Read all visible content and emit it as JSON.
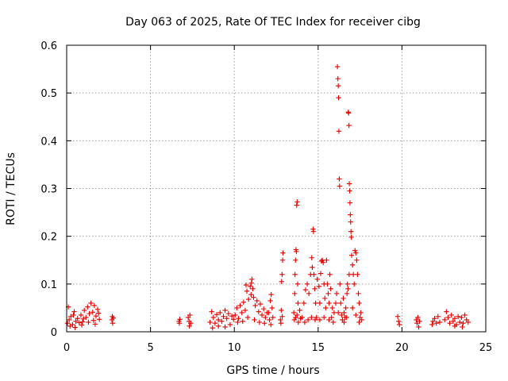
{
  "chart_data": {
    "type": "scatter",
    "title": "Day 063 of 2025, Rate Of TEC Index for receiver cibg",
    "xlabel": "GPS time / hours",
    "ylabel": "ROTI / TECUs",
    "xlim": [
      0,
      25
    ],
    "ylim": [
      0,
      0.6
    ],
    "x_ticks": [
      "0",
      "5",
      "10",
      "15",
      "20",
      "25"
    ],
    "y_ticks": [
      "0",
      "0.1",
      "0.2",
      "0.3",
      "0.4",
      "0.5",
      "0.6"
    ],
    "grid": true,
    "marker": "+",
    "colors": {
      "points": "#e00000"
    },
    "series": [
      {
        "points": [
          [
            0.05,
            0.018
          ],
          [
            0.15,
            0.025
          ],
          [
            0.25,
            0.032
          ],
          [
            0.35,
            0.015
          ],
          [
            0.45,
            0.042
          ],
          [
            0.55,
            0.022
          ],
          [
            0.65,
            0.028
          ],
          [
            0.75,
            0.019
          ],
          [
            0.85,
            0.035
          ],
          [
            0.95,
            0.021
          ],
          [
            1.05,
            0.045
          ],
          [
            1.15,
            0.03
          ],
          [
            1.25,
            0.052
          ],
          [
            1.35,
            0.038
          ],
          [
            1.45,
            0.06
          ],
          [
            1.55,
            0.041
          ],
          [
            1.65,
            0.055
          ],
          [
            1.75,
            0.033
          ],
          [
            1.85,
            0.047
          ],
          [
            1.95,
            0.026
          ],
          [
            0.2,
            0.012
          ],
          [
            0.5,
            0.009
          ],
          [
            0.9,
            0.014
          ],
          [
            1.3,
            0.02
          ],
          [
            1.7,
            0.016
          ],
          [
            0.1,
            0.052
          ],
          [
            0.4,
            0.035
          ],
          [
            1.0,
            0.027
          ],
          [
            1.6,
            0.024
          ],
          [
            1.9,
            0.039
          ],
          [
            2.7,
            0.025
          ],
          [
            2.72,
            0.032
          ],
          [
            2.74,
            0.018
          ],
          [
            2.78,
            0.029
          ],
          [
            6.7,
            0.022
          ],
          [
            6.72,
            0.018
          ],
          [
            6.75,
            0.026
          ],
          [
            7.25,
            0.03
          ],
          [
            7.3,
            0.022
          ],
          [
            7.35,
            0.035
          ],
          [
            7.4,
            0.018
          ],
          [
            7.32,
            0.012
          ],
          [
            8.55,
            0.02
          ],
          [
            8.65,
            0.042
          ],
          [
            8.75,
            0.03
          ],
          [
            8.85,
            0.018
          ],
          [
            8.95,
            0.036
          ],
          [
            9.05,
            0.025
          ],
          [
            9.15,
            0.04
          ],
          [
            9.25,
            0.022
          ],
          [
            9.35,
            0.032
          ],
          [
            9.45,
            0.045
          ],
          [
            9.55,
            0.028
          ],
          [
            9.65,
            0.038
          ],
          [
            9.75,
            0.015
          ],
          [
            9.85,
            0.033
          ],
          [
            9.95,
            0.026
          ],
          [
            9.05,
            0.012
          ],
          [
            9.45,
            0.01
          ],
          [
            8.7,
            0.008
          ],
          [
            10.05,
            0.035
          ],
          [
            10.15,
            0.05
          ],
          [
            10.25,
            0.028
          ],
          [
            10.35,
            0.055
          ],
          [
            10.45,
            0.04
          ],
          [
            10.55,
            0.062
          ],
          [
            10.65,
            0.045
          ],
          [
            10.75,
            0.085
          ],
          [
            10.85,
            0.068
          ],
          [
            10.95,
            0.095
          ],
          [
            11.0,
            0.078
          ],
          [
            11.05,
            0.11
          ],
          [
            11.1,
            0.09
          ],
          [
            11.15,
            0.072
          ],
          [
            11.25,
            0.055
          ],
          [
            11.35,
            0.065
          ],
          [
            11.45,
            0.042
          ],
          [
            11.55,
            0.058
          ],
          [
            11.65,
            0.035
          ],
          [
            11.75,
            0.048
          ],
          [
            11.85,
            0.03
          ],
          [
            11.95,
            0.04
          ],
          [
            10.2,
            0.02
          ],
          [
            10.5,
            0.022
          ],
          [
            10.8,
            0.03
          ],
          [
            11.2,
            0.025
          ],
          [
            11.5,
            0.02
          ],
          [
            11.8,
            0.018
          ],
          [
            10.7,
            0.098
          ],
          [
            11.02,
            0.102
          ],
          [
            12.05,
            0.04
          ],
          [
            12.15,
            0.065
          ],
          [
            12.2,
            0.078
          ],
          [
            12.25,
            0.05
          ],
          [
            12.1,
            0.025
          ],
          [
            12.3,
            0.03
          ],
          [
            12.18,
            0.015
          ],
          [
            12.75,
            0.025
          ],
          [
            12.8,
            0.045
          ],
          [
            12.82,
            0.105
          ],
          [
            12.85,
            0.12
          ],
          [
            12.88,
            0.15
          ],
          [
            12.9,
            0.165
          ],
          [
            12.78,
            0.018
          ],
          [
            12.86,
            0.032
          ],
          [
            13.55,
            0.04
          ],
          [
            13.6,
            0.08
          ],
          [
            13.62,
            0.12
          ],
          [
            13.65,
            0.15
          ],
          [
            13.68,
            0.172
          ],
          [
            13.7,
            0.168
          ],
          [
            13.72,
            0.265
          ],
          [
            13.75,
            0.272
          ],
          [
            13.78,
            0.1
          ],
          [
            13.8,
            0.06
          ],
          [
            13.58,
            0.025
          ],
          [
            13.66,
            0.03
          ],
          [
            13.74,
            0.035
          ],
          [
            13.82,
            0.02
          ],
          [
            13.9,
            0.045
          ],
          [
            13.95,
            0.028
          ],
          [
            14.05,
            0.03
          ],
          [
            14.15,
            0.06
          ],
          [
            14.25,
            0.088
          ],
          [
            14.35,
            0.1
          ],
          [
            14.45,
            0.08
          ],
          [
            14.55,
            0.12
          ],
          [
            14.62,
            0.155
          ],
          [
            14.65,
            0.135
          ],
          [
            14.7,
            0.215
          ],
          [
            14.72,
            0.21
          ],
          [
            14.75,
            0.12
          ],
          [
            14.8,
            0.09
          ],
          [
            14.85,
            0.06
          ],
          [
            14.9,
            0.03
          ],
          [
            14.95,
            0.11
          ],
          [
            14.2,
            0.02
          ],
          [
            14.4,
            0.025
          ],
          [
            14.6,
            0.03
          ],
          [
            14.82,
            0.025
          ],
          [
            15.05,
            0.095
          ],
          [
            15.1,
            0.06
          ],
          [
            15.15,
            0.122
          ],
          [
            15.2,
            0.148
          ],
          [
            15.25,
            0.15
          ],
          [
            15.3,
            0.145
          ],
          [
            15.35,
            0.1
          ],
          [
            15.4,
            0.07
          ],
          [
            15.45,
            0.05
          ],
          [
            15.5,
            0.15
          ],
          [
            15.55,
            0.1
          ],
          [
            15.6,
            0.08
          ],
          [
            15.65,
            0.06
          ],
          [
            15.7,
            0.12
          ],
          [
            15.75,
            0.09
          ],
          [
            15.8,
            0.03
          ],
          [
            15.85,
            0.05
          ],
          [
            15.9,
            0.02
          ],
          [
            15.95,
            0.04
          ],
          [
            15.1,
            0.025
          ],
          [
            15.35,
            0.03
          ],
          [
            15.65,
            0.025
          ],
          [
            16.05,
            0.06
          ],
          [
            16.1,
            0.08
          ],
          [
            16.15,
            0.555
          ],
          [
            16.18,
            0.53
          ],
          [
            16.2,
            0.515
          ],
          [
            16.22,
            0.49
          ],
          [
            16.24,
            0.42
          ],
          [
            16.26,
            0.32
          ],
          [
            16.28,
            0.305
          ],
          [
            16.3,
            0.1
          ],
          [
            16.35,
            0.06
          ],
          [
            16.4,
            0.035
          ],
          [
            16.45,
            0.025
          ],
          [
            16.5,
            0.07
          ],
          [
            16.55,
            0.04
          ],
          [
            16.6,
            0.03
          ],
          [
            16.65,
            0.05
          ],
          [
            16.7,
            0.03
          ],
          [
            16.75,
            0.1
          ],
          [
            16.78,
            0.09
          ],
          [
            16.8,
            0.46
          ],
          [
            16.82,
            0.458
          ],
          [
            16.84,
            0.432
          ],
          [
            16.86,
            0.31
          ],
          [
            16.88,
            0.295
          ],
          [
            16.9,
            0.27
          ],
          [
            16.92,
            0.245
          ],
          [
            16.94,
            0.23
          ],
          [
            16.96,
            0.21
          ],
          [
            16.98,
            0.198
          ],
          [
            16.2,
            0.04
          ],
          [
            16.55,
            0.02
          ],
          [
            16.72,
            0.08
          ],
          [
            16.85,
            0.12
          ],
          [
            17.0,
            0.16
          ],
          [
            17.05,
            0.14
          ],
          [
            17.1,
            0.12
          ],
          [
            17.15,
            0.1
          ],
          [
            17.2,
            0.17
          ],
          [
            17.25,
            0.165
          ],
          [
            17.3,
            0.15
          ],
          [
            17.35,
            0.12
          ],
          [
            17.4,
            0.08
          ],
          [
            17.45,
            0.06
          ],
          [
            17.5,
            0.03
          ],
          [
            17.55,
            0.04
          ],
          [
            17.6,
            0.025
          ],
          [
            17.05,
            0.05
          ],
          [
            17.25,
            0.035
          ],
          [
            17.45,
            0.02
          ],
          [
            19.75,
            0.032
          ],
          [
            19.8,
            0.022
          ],
          [
            19.85,
            0.015
          ],
          [
            20.85,
            0.025
          ],
          [
            20.9,
            0.018
          ],
          [
            20.95,
            0.03
          ],
          [
            21.0,
            0.01
          ],
          [
            21.05,
            0.022
          ],
          [
            21.8,
            0.015
          ],
          [
            21.85,
            0.022
          ],
          [
            21.95,
            0.028
          ],
          [
            22.05,
            0.018
          ],
          [
            22.15,
            0.032
          ],
          [
            22.25,
            0.02
          ],
          [
            22.55,
            0.025
          ],
          [
            22.65,
            0.042
          ],
          [
            22.75,
            0.03
          ],
          [
            22.85,
            0.018
          ],
          [
            22.95,
            0.035
          ],
          [
            23.05,
            0.022
          ],
          [
            23.15,
            0.028
          ],
          [
            23.25,
            0.015
          ],
          [
            23.35,
            0.032
          ],
          [
            23.45,
            0.02
          ],
          [
            23.55,
            0.03
          ],
          [
            23.65,
            0.018
          ],
          [
            23.75,
            0.035
          ],
          [
            23.85,
            0.025
          ],
          [
            23.95,
            0.02
          ],
          [
            23.15,
            0.012
          ],
          [
            23.6,
            0.01
          ]
        ]
      }
    ]
  }
}
